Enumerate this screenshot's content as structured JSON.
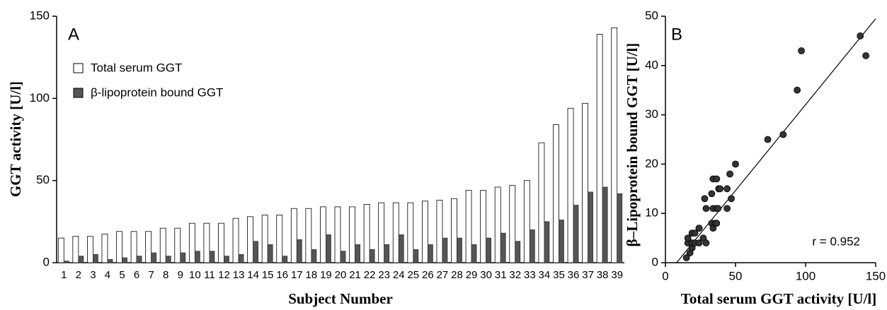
{
  "chart_data": [
    {
      "type": "bar",
      "panel_label": "A",
      "ylabel": "GGT activity  [U/l]",
      "xlabel": "Subject Number",
      "categories": [
        "1",
        "2",
        "3",
        "4",
        "5",
        "6",
        "7",
        "8",
        "9",
        "10",
        "11",
        "12",
        "13",
        "14",
        "15",
        "16",
        "17",
        "18",
        "19",
        "20",
        "21",
        "22",
        "23",
        "24",
        "25",
        "26",
        "27",
        "28",
        "29",
        "30",
        "31",
        "32",
        "33",
        "34",
        "35",
        "36",
        "37",
        "38",
        "39"
      ],
      "series": [
        {
          "name": "Total serum GGT",
          "color": "#ffffff",
          "values": [
            15,
            16,
            16,
            17.5,
            19,
            19,
            19,
            21,
            21,
            24,
            24,
            24,
            27,
            28,
            29,
            29,
            33,
            33,
            34,
            34,
            34,
            35.5,
            36.5,
            36.5,
            36.5,
            37.5,
            38,
            39,
            44,
            44,
            46,
            47,
            50,
            73,
            84,
            94,
            97,
            139,
            143
          ]
        },
        {
          "name": "β-lipoprotein bound GGT",
          "color": "#555555",
          "values": [
            1,
            4,
            5,
            2,
            3,
            4,
            6,
            4,
            6,
            7,
            7,
            4,
            5,
            13,
            11,
            4,
            14,
            8,
            17,
            7,
            11,
            8,
            11,
            17,
            8,
            11,
            15,
            15,
            11,
            15,
            18,
            13,
            20,
            25,
            26,
            35,
            43,
            46,
            42
          ]
        }
      ],
      "ylim": [
        0,
        150
      ],
      "yticks": [
        0,
        50,
        100,
        150
      ]
    },
    {
      "type": "scatter",
      "panel_label": "B",
      "xlabel": "Total serum GGT activity [U/l]",
      "ylabel": "β–Lipoprotein bound GGT  [U/l]",
      "x": [
        15,
        16,
        16,
        17.5,
        19,
        19,
        19,
        21,
        21,
        24,
        24,
        24,
        27,
        28,
        29,
        29,
        33,
        33,
        34,
        34,
        34,
        35.5,
        36.5,
        36.5,
        36.5,
        37.5,
        38,
        39,
        44,
        44,
        46,
        47,
        50,
        73,
        84,
        94,
        97,
        139,
        143
      ],
      "values": [
        1,
        4,
        5,
        2,
        3,
        4,
        6,
        4,
        6,
        7,
        7,
        4,
        5,
        13,
        11,
        4,
        14,
        8,
        17,
        7,
        11,
        8,
        11,
        17,
        8,
        11,
        15,
        15,
        11,
        15,
        18,
        13,
        20,
        25,
        26,
        35,
        43,
        46,
        42
      ],
      "color": "#333333",
      "xlim": [
        0,
        150
      ],
      "ylim": [
        0,
        50
      ],
      "xticks": [
        0,
        50,
        100,
        150
      ],
      "yticks": [
        0,
        10,
        20,
        30,
        40,
        50
      ],
      "fit_line": {
        "x": [
          8,
          150
        ],
        "y": [
          0,
          49.5
        ]
      },
      "annotation": "r = 0.952"
    }
  ]
}
